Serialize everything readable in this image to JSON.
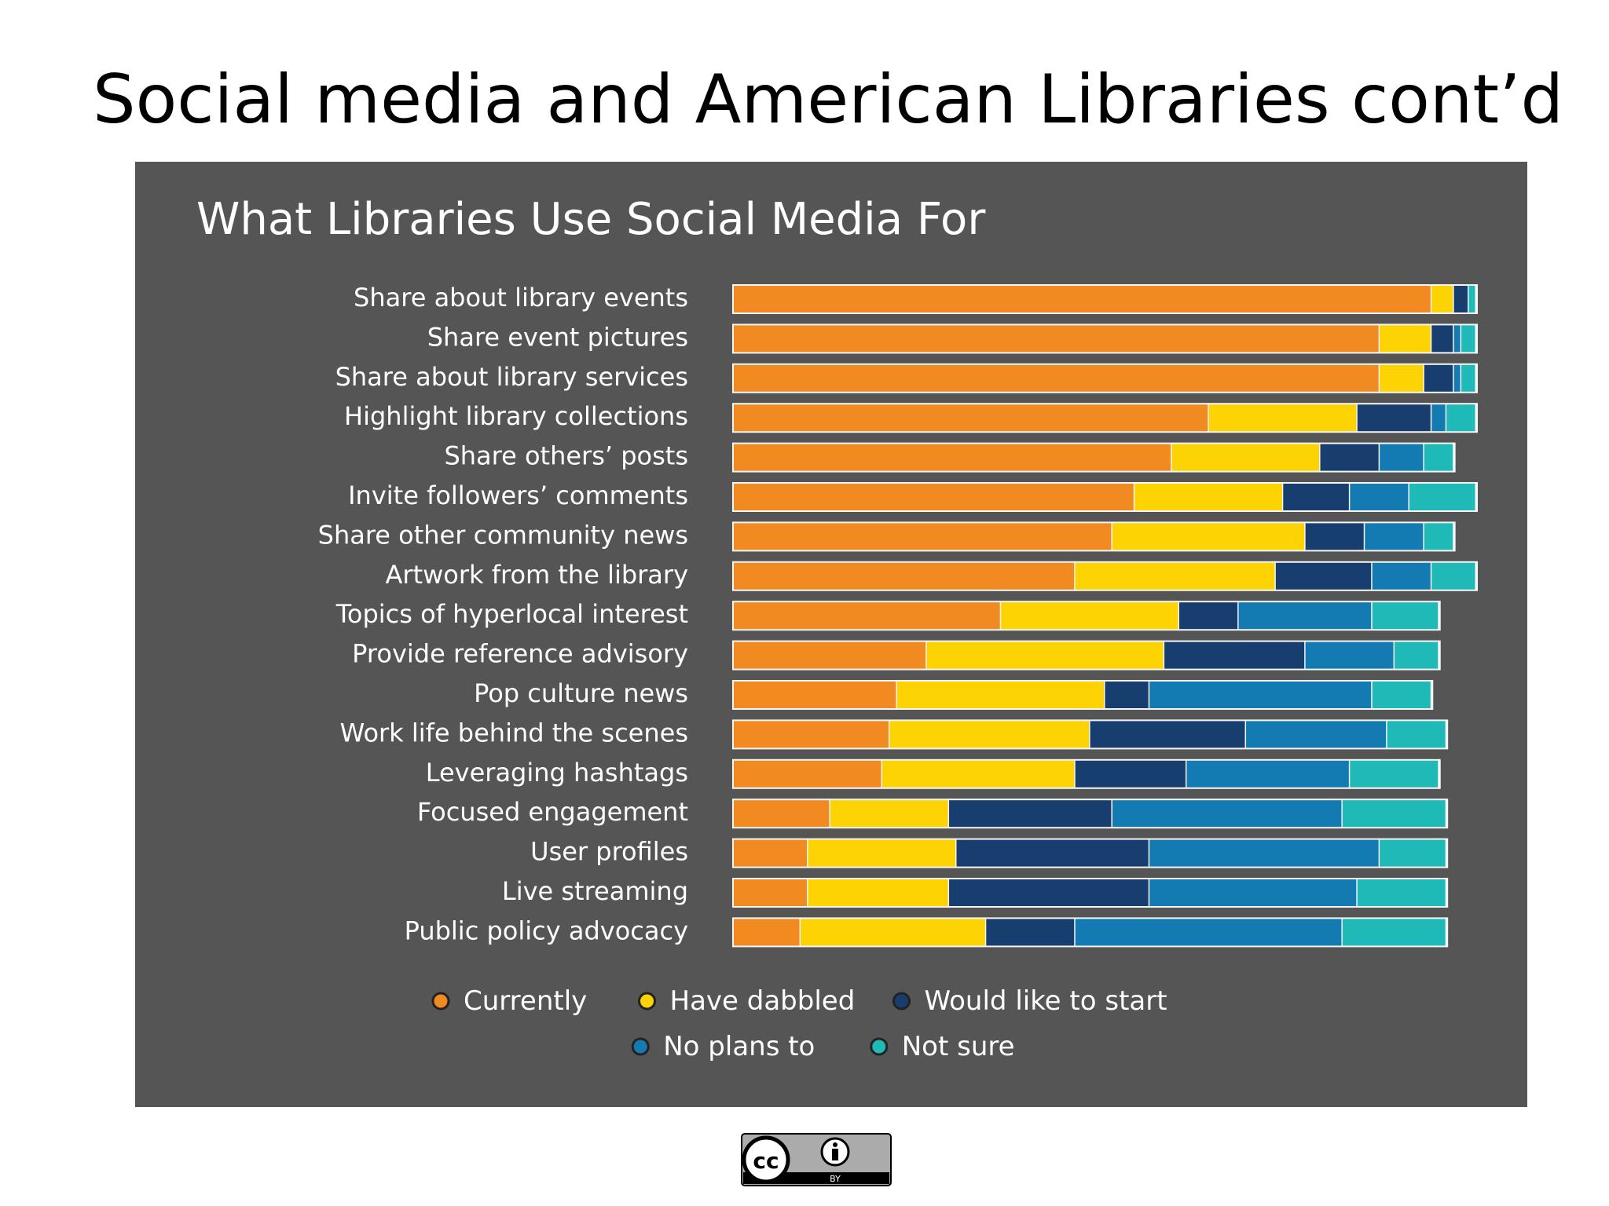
{
  "slide": {
    "title": "Social media and American Libraries cont’d"
  },
  "license": {
    "icon": "cc-by-icon",
    "by_label": "BY",
    "cc_label": "cc"
  },
  "chart_data": {
    "type": "bar",
    "orientation": "horizontal",
    "stacked": true,
    "title": "What Libraries Use Social Media For",
    "categories": [
      "Share about library events",
      "Share event pictures",
      "Share about library services",
      "Highlight library collections",
      "Share others’ posts",
      "Invite followers’ comments",
      "Share other community news",
      "Artwork from the library",
      "Topics of hyperlocal interest",
      "Provide reference advisory",
      "Pop culture news",
      "Work life behind the scenes",
      "Leveraging hashtags",
      "Focused engagement",
      "User profiles",
      "Live streaming",
      "Public policy advocacy"
    ],
    "series": [
      {
        "name": "Currently",
        "color": "#f18a21",
        "values": [
          94,
          87,
          87,
          64,
          59,
          54,
          51,
          46,
          36,
          26,
          22,
          21,
          20,
          13,
          10,
          10,
          9
        ]
      },
      {
        "name": "Have dabbled",
        "color": "#fed304",
        "values": [
          3,
          7,
          6,
          20,
          20,
          20,
          26,
          27,
          24,
          32,
          28,
          27,
          26,
          16,
          20,
          19,
          25
        ]
      },
      {
        "name": "Would like to start",
        "color": "#183e6f",
        "values": [
          2,
          3,
          4,
          10,
          8,
          9,
          8,
          13,
          8,
          19,
          6,
          21,
          15,
          22,
          26,
          27,
          12
        ]
      },
      {
        "name": "No plans to",
        "color": "#137bb1",
        "values": [
          0,
          1,
          1,
          2,
          6,
          8,
          8,
          8,
          18,
          12,
          30,
          19,
          22,
          31,
          31,
          28,
          36
        ]
      },
      {
        "name": "Not sure",
        "color": "#1fb9b8",
        "values": [
          1,
          2,
          2,
          4,
          4,
          9,
          4,
          6,
          9,
          6,
          8,
          8,
          12,
          14,
          9,
          12,
          14
        ]
      }
    ],
    "xlim": [
      0,
      100
    ],
    "grid": false,
    "legend_position": "bottom"
  },
  "colors": {
    "panel_background": "#555556",
    "label_text": "#ffffff",
    "bar_outline": "#f6f6f6"
  }
}
